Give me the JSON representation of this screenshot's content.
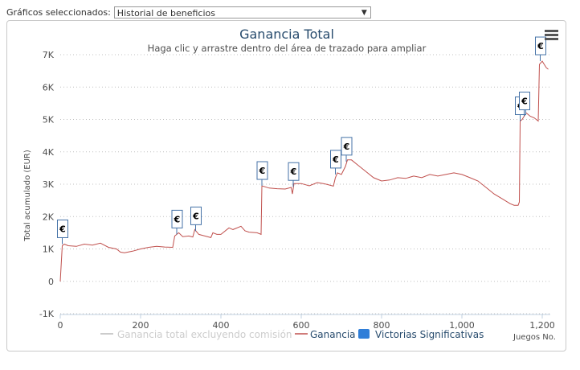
{
  "selector": {
    "label": "Gráficos seleccionados:",
    "value": "Historial de beneficios",
    "arrow": "▼"
  },
  "menu_icon": "hamburger-menu-icon",
  "colors": {
    "line": "#c0504d",
    "excl": "#cccccc",
    "flag_border": "#4572a7",
    "legend_square": "#2f7ed8",
    "grid": "#c0c0c0"
  },
  "chart_data": {
    "type": "line",
    "title": "Ganancia Total",
    "subtitle": "Haga clic y arrastre dentro del área de trazado para ampliar",
    "xlabel": "Juegos No.",
    "ylabel": "Total acumulado (EUR)",
    "xlim": [
      0,
      1220
    ],
    "ylim": [
      -1000,
      7000
    ],
    "x_ticks": [
      0,
      200,
      400,
      600,
      800,
      1000,
      1200
    ],
    "x_tick_labels": [
      "0",
      "200",
      "400",
      "600",
      "800",
      "1,000",
      "1,200"
    ],
    "y_ticks": [
      -1000,
      0,
      1000,
      2000,
      3000,
      4000,
      5000,
      6000,
      7000
    ],
    "y_tick_labels": [
      "-1K",
      "0",
      "1K",
      "2K",
      "3K",
      "4K",
      "5K",
      "6K",
      "7K"
    ],
    "grid": true,
    "legend": [
      "Ganancia total excluyendo comisión",
      "Ganancia",
      "Victorias Significativas"
    ],
    "legend_position": "bottom",
    "series": [
      {
        "name": "Ganancia total excluyendo comisión",
        "points": []
      },
      {
        "name": "Ganancia",
        "points": [
          [
            0,
            0
          ],
          [
            5,
            1100
          ],
          [
            10,
            1150
          ],
          [
            20,
            1100
          ],
          [
            40,
            1080
          ],
          [
            60,
            1150
          ],
          [
            80,
            1120
          ],
          [
            100,
            1180
          ],
          [
            120,
            1050
          ],
          [
            140,
            1000
          ],
          [
            150,
            900
          ],
          [
            160,
            880
          ],
          [
            180,
            930
          ],
          [
            200,
            1000
          ],
          [
            220,
            1050
          ],
          [
            240,
            1080
          ],
          [
            260,
            1060
          ],
          [
            280,
            1050
          ],
          [
            285,
            1400
          ],
          [
            295,
            1500
          ],
          [
            305,
            1380
          ],
          [
            320,
            1400
          ],
          [
            330,
            1370
          ],
          [
            335,
            1600
          ],
          [
            345,
            1450
          ],
          [
            360,
            1400
          ],
          [
            375,
            1350
          ],
          [
            380,
            1500
          ],
          [
            390,
            1450
          ],
          [
            400,
            1450
          ],
          [
            420,
            1650
          ],
          [
            430,
            1600
          ],
          [
            450,
            1700
          ],
          [
            460,
            1560
          ],
          [
            470,
            1520
          ],
          [
            490,
            1500
          ],
          [
            500,
            1450
          ],
          [
            502,
            2950
          ],
          [
            520,
            2880
          ],
          [
            540,
            2860
          ],
          [
            560,
            2850
          ],
          [
            575,
            2900
          ],
          [
            578,
            2700
          ],
          [
            582,
            3020
          ],
          [
            600,
            3020
          ],
          [
            620,
            2950
          ],
          [
            640,
            3050
          ],
          [
            655,
            3020
          ],
          [
            665,
            2990
          ],
          [
            680,
            2940
          ],
          [
            685,
            3200
          ],
          [
            690,
            3350
          ],
          [
            700,
            3300
          ],
          [
            710,
            3550
          ],
          [
            715,
            3750
          ],
          [
            725,
            3750
          ],
          [
            740,
            3600
          ],
          [
            760,
            3400
          ],
          [
            780,
            3200
          ],
          [
            800,
            3100
          ],
          [
            820,
            3130
          ],
          [
            840,
            3200
          ],
          [
            860,
            3180
          ],
          [
            880,
            3250
          ],
          [
            900,
            3200
          ],
          [
            920,
            3300
          ],
          [
            940,
            3250
          ],
          [
            960,
            3300
          ],
          [
            980,
            3350
          ],
          [
            1000,
            3300
          ],
          [
            1020,
            3200
          ],
          [
            1040,
            3100
          ],
          [
            1060,
            2900
          ],
          [
            1080,
            2700
          ],
          [
            1100,
            2550
          ],
          [
            1120,
            2400
          ],
          [
            1130,
            2350
          ],
          [
            1140,
            2350
          ],
          [
            1143,
            2450
          ],
          [
            1145,
            4950
          ],
          [
            1150,
            5000
          ],
          [
            1160,
            5200
          ],
          [
            1170,
            5100
          ],
          [
            1180,
            5050
          ],
          [
            1190,
            4950
          ],
          [
            1193,
            6700
          ],
          [
            1200,
            6800
          ],
          [
            1210,
            6600
          ],
          [
            1215,
            6550
          ]
        ]
      }
    ],
    "flags": [
      {
        "x": 5,
        "y": 1150,
        "label": "€"
      },
      {
        "x": 290,
        "y": 1450,
        "label": "€"
      },
      {
        "x": 337,
        "y": 1550,
        "label": "€"
      },
      {
        "x": 502,
        "y": 2950,
        "label": "€"
      },
      {
        "x": 580,
        "y": 2920,
        "label": "€"
      },
      {
        "x": 685,
        "y": 3300,
        "label": "€"
      },
      {
        "x": 712,
        "y": 3700,
        "label": "€"
      },
      {
        "x": 1145,
        "y": 4950,
        "label": "€"
      },
      {
        "x": 1155,
        "y": 5100,
        "label": "€"
      },
      {
        "x": 1195,
        "y": 6800,
        "label": "€"
      }
    ]
  }
}
